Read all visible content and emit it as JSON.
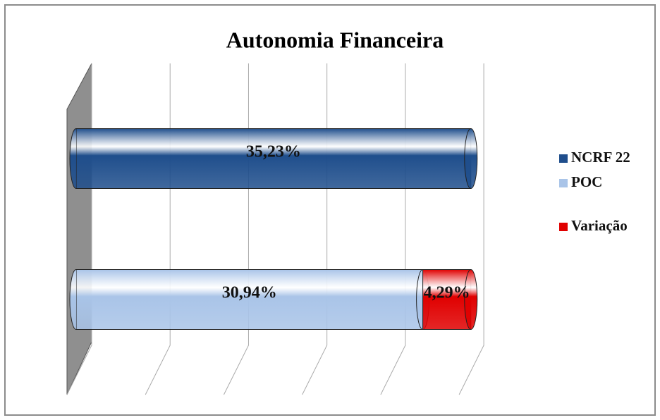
{
  "chart_data": {
    "type": "bar",
    "orientation": "horizontal",
    "stacked": true,
    "title": "Autonomia Financeira",
    "categories": [
      null,
      null
    ],
    "series": [
      {
        "name": "NCRF 22",
        "color": "#1f4e8c",
        "values": [
          35.23,
          null
        ],
        "value_labels": [
          "35,23%",
          null
        ]
      },
      {
        "name": "POC",
        "color": "#a9c4e8",
        "values": [
          null,
          30.94
        ],
        "value_labels": [
          null,
          "30,94%"
        ]
      },
      {
        "name": "Variação",
        "color": "#e00000",
        "values": [
          null,
          4.29
        ],
        "value_labels": [
          null,
          "4,29%"
        ]
      }
    ],
    "xlim": [
      0,
      36
    ],
    "xticks": [
      0,
      7,
      14,
      21,
      28,
      35
    ],
    "grid": true,
    "legend": "right"
  }
}
